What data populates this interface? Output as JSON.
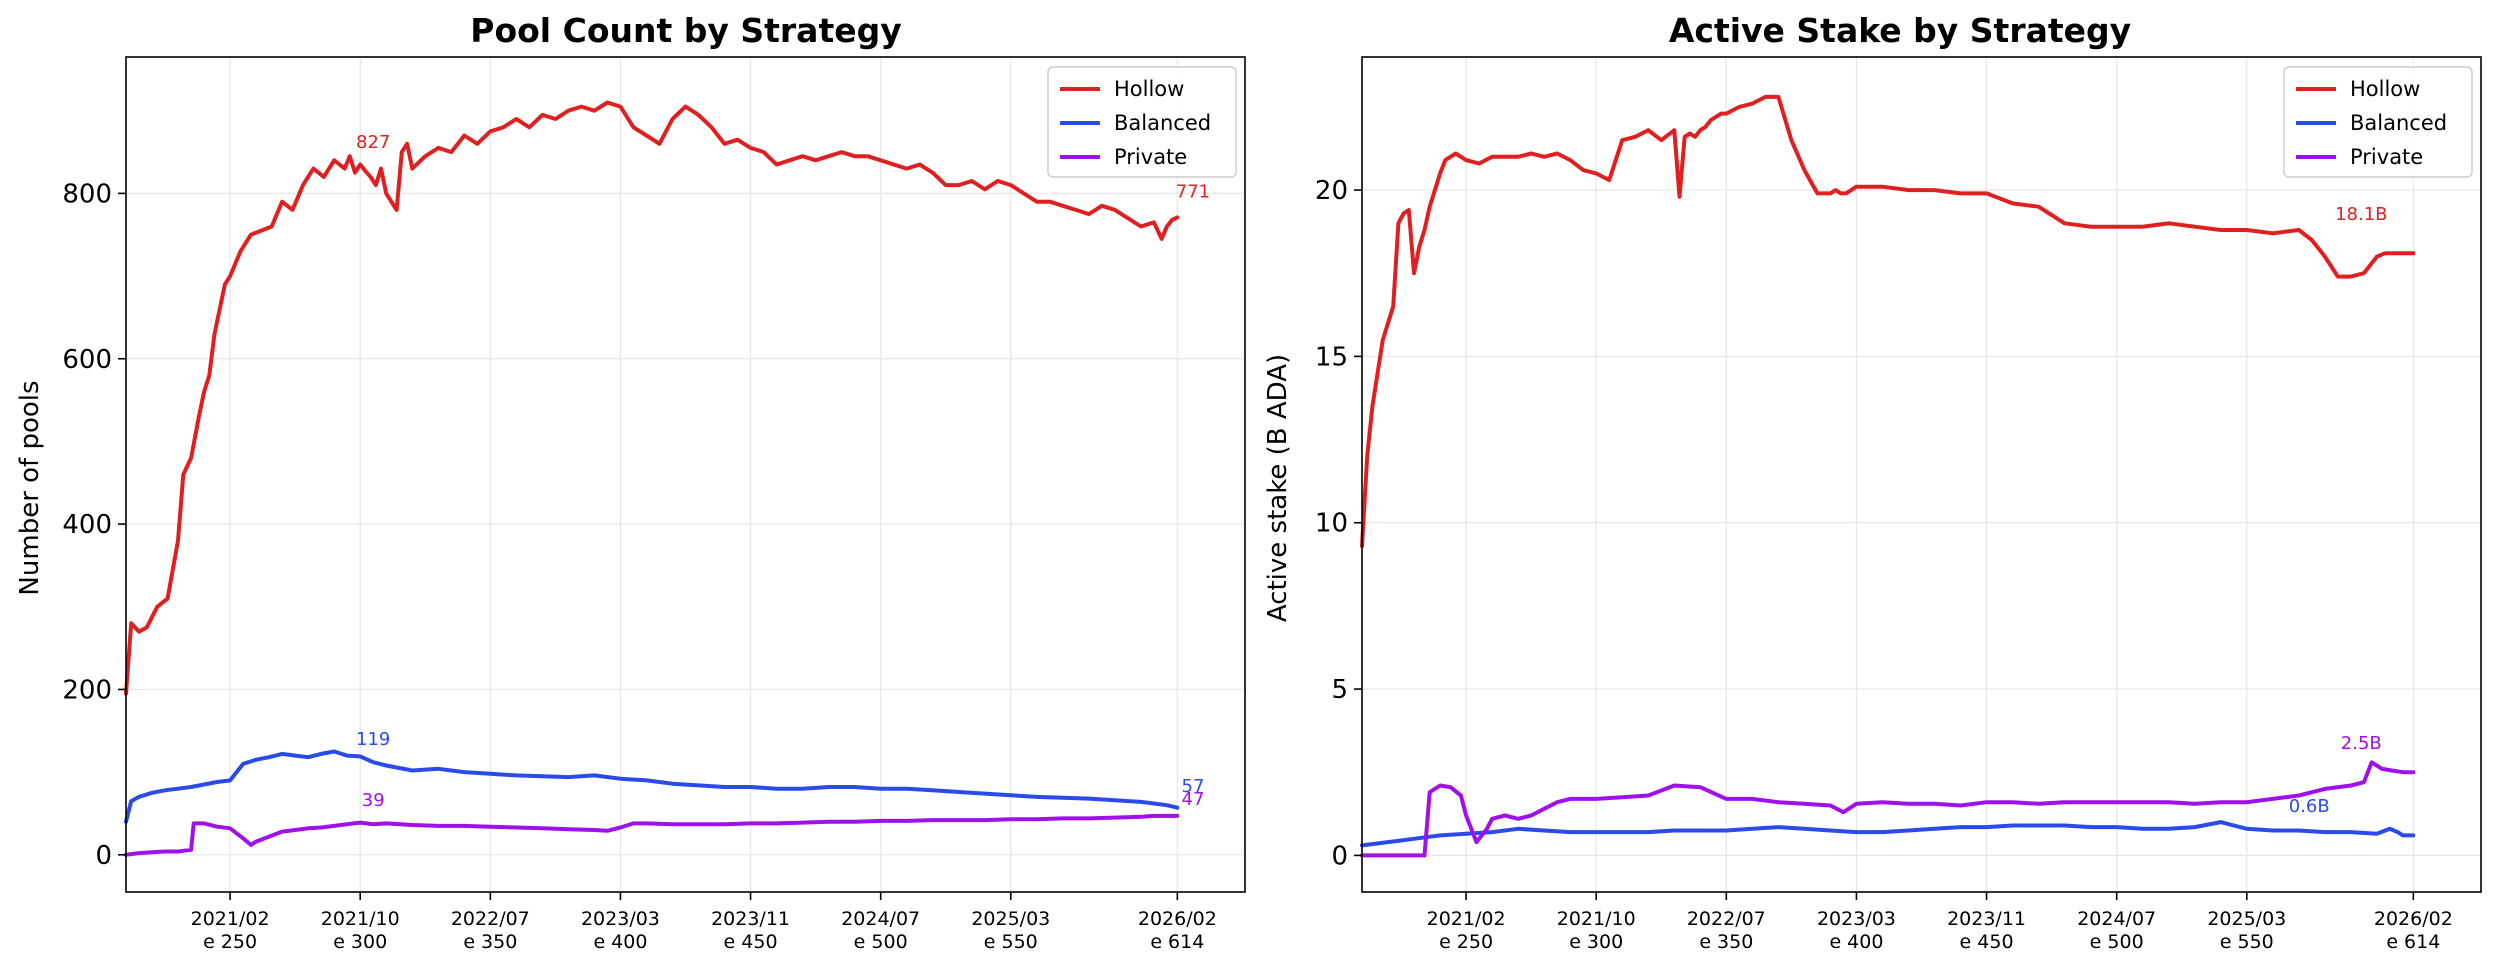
{
  "chart_data": [
    {
      "type": "line",
      "title": "Pool Count by Strategy",
      "xlabel": "",
      "ylabel": "Number of pools",
      "xlim": [
        210,
        640
      ],
      "ylim": [
        -45,
        965
      ],
      "yticks": [
        0,
        200,
        400,
        600,
        800
      ],
      "xticks": [
        {
          "epoch": 250,
          "date": "2021/02",
          "label": "e 250"
        },
        {
          "epoch": 300,
          "date": "2021/10",
          "label": "e 300"
        },
        {
          "epoch": 350,
          "date": "2022/07",
          "label": "e 350"
        },
        {
          "epoch": 400,
          "date": "2023/03",
          "label": "e 400"
        },
        {
          "epoch": 450,
          "date": "2023/11",
          "label": "e 450"
        },
        {
          "epoch": 500,
          "date": "2024/07",
          "label": "e 500"
        },
        {
          "epoch": 550,
          "date": "2025/03",
          "label": "e 550"
        },
        {
          "epoch": 614,
          "date": "2026/02",
          "label": "e 614"
        }
      ],
      "grid": true,
      "legend": "top-right",
      "series": [
        {
          "name": "Hollow",
          "color": "#e02020",
          "x": [
            210,
            212,
            215,
            218,
            222,
            226,
            230,
            232,
            235,
            238,
            240,
            242,
            244,
            246,
            248,
            250,
            254,
            258,
            262,
            266,
            270,
            274,
            278,
            282,
            286,
            290,
            294,
            296,
            298,
            300,
            302,
            304,
            306,
            308,
            310,
            312,
            314,
            316,
            318,
            320,
            325,
            330,
            335,
            340,
            345,
            350,
            355,
            360,
            365,
            370,
            375,
            380,
            385,
            390,
            395,
            400,
            405,
            410,
            415,
            420,
            425,
            430,
            435,
            440,
            445,
            450,
            455,
            460,
            465,
            470,
            475,
            480,
            485,
            490,
            495,
            500,
            505,
            510,
            515,
            520,
            525,
            530,
            535,
            540,
            545,
            550,
            555,
            560,
            565,
            570,
            575,
            580,
            585,
            590,
            595,
            600,
            605,
            608,
            610,
            612,
            614
          ],
          "values": [
            195,
            280,
            270,
            275,
            300,
            310,
            380,
            460,
            480,
            530,
            560,
            580,
            630,
            660,
            690,
            700,
            730,
            750,
            755,
            760,
            790,
            780,
            810,
            830,
            820,
            840,
            830,
            845,
            825,
            835,
            827,
            820,
            810,
            830,
            800,
            790,
            780,
            850,
            860,
            830,
            845,
            855,
            850,
            870,
            860,
            875,
            880,
            890,
            880,
            895,
            890,
            900,
            905,
            900,
            910,
            905,
            880,
            870,
            860,
            890,
            905,
            895,
            880,
            860,
            865,
            855,
            850,
            835,
            840,
            845,
            840,
            845,
            850,
            845,
            845,
            840,
            835,
            830,
            835,
            825,
            810,
            810,
            815,
            805,
            815,
            810,
            800,
            790,
            790,
            785,
            780,
            775,
            785,
            780,
            770,
            760,
            765,
            745,
            760,
            768,
            771
          ]
        },
        {
          "name": "Balanced",
          "color": "#2a4bea",
          "x": [
            210,
            212,
            215,
            220,
            225,
            230,
            235,
            240,
            245,
            250,
            255,
            260,
            265,
            270,
            275,
            280,
            285,
            290,
            295,
            300,
            305,
            310,
            315,
            320,
            330,
            340,
            350,
            360,
            370,
            380,
            390,
            400,
            410,
            420,
            430,
            440,
            450,
            460,
            470,
            480,
            490,
            500,
            510,
            520,
            530,
            540,
            550,
            560,
            570,
            580,
            590,
            600,
            605,
            610,
            614
          ],
          "values": [
            40,
            65,
            70,
            75,
            78,
            80,
            82,
            85,
            88,
            90,
            110,
            115,
            118,
            122,
            120,
            118,
            122,
            125,
            120,
            119,
            112,
            108,
            105,
            102,
            104,
            100,
            98,
            96,
            95,
            94,
            96,
            92,
            90,
            86,
            84,
            82,
            82,
            80,
            80,
            82,
            82,
            80,
            80,
            78,
            76,
            74,
            72,
            70,
            69,
            68,
            66,
            64,
            62,
            60,
            57
          ]
        },
        {
          "name": "Private",
          "color": "#a010e8",
          "x": [
            210,
            215,
            220,
            225,
            230,
            235,
            236,
            240,
            245,
            250,
            255,
            258,
            260,
            265,
            270,
            275,
            280,
            285,
            290,
            295,
            300,
            305,
            310,
            320,
            330,
            340,
            350,
            360,
            370,
            380,
            390,
            395,
            400,
            405,
            410,
            420,
            430,
            440,
            450,
            460,
            470,
            480,
            490,
            500,
            510,
            520,
            530,
            540,
            550,
            560,
            570,
            580,
            590,
            600,
            605,
            610,
            614
          ],
          "values": [
            0,
            2,
            3,
            4,
            4,
            6,
            38,
            38,
            34,
            32,
            20,
            12,
            16,
            22,
            28,
            30,
            32,
            33,
            35,
            37,
            39,
            37,
            38,
            36,
            35,
            35,
            34,
            33,
            32,
            31,
            30,
            29,
            33,
            38,
            38,
            37,
            37,
            37,
            38,
            38,
            39,
            40,
            40,
            41,
            41,
            42,
            42,
            42,
            43,
            43,
            44,
            44,
            45,
            46,
            47,
            47,
            47
          ]
        }
      ],
      "annotations": [
        {
          "series": "Hollow",
          "x": 305,
          "y": 855,
          "text": "827"
        },
        {
          "series": "Hollow",
          "x": 620,
          "y": 795,
          "text": "771"
        },
        {
          "series": "Balanced",
          "x": 305,
          "y": 133,
          "text": "119"
        },
        {
          "series": "Balanced",
          "x": 620,
          "y": 76,
          "text": "57"
        },
        {
          "series": "Private",
          "x": 305,
          "y": 59,
          "text": "39"
        },
        {
          "series": "Private",
          "x": 620,
          "y": 60,
          "text": "47"
        }
      ]
    },
    {
      "type": "line",
      "title": "Active Stake by Strategy",
      "xlabel": "",
      "ylabel": "Active stake (B ADA)",
      "xlim": [
        210,
        640
      ],
      "ylim": [
        -1.1,
        24.0
      ],
      "yticks": [
        0,
        5,
        10,
        15,
        20
      ],
      "xticks": [
        {
          "epoch": 250,
          "date": "2021/02",
          "label": "e 250"
        },
        {
          "epoch": 300,
          "date": "2021/10",
          "label": "e 300"
        },
        {
          "epoch": 350,
          "date": "2022/07",
          "label": "e 350"
        },
        {
          "epoch": 400,
          "date": "2023/03",
          "label": "e 400"
        },
        {
          "epoch": 450,
          "date": "2023/11",
          "label": "e 450"
        },
        {
          "epoch": 500,
          "date": "2024/07",
          "label": "e 500"
        },
        {
          "epoch": 550,
          "date": "2025/03",
          "label": "e 550"
        },
        {
          "epoch": 614,
          "date": "2026/02",
          "label": "e 614"
        }
      ],
      "grid": true,
      "legend": "top-right",
      "series": [
        {
          "name": "Hollow",
          "color": "#e02020",
          "x": [
            210,
            212,
            214,
            216,
            218,
            220,
            222,
            224,
            226,
            228,
            230,
            232,
            234,
            236,
            238,
            240,
            242,
            244,
            246,
            250,
            255,
            260,
            265,
            270,
            275,
            280,
            285,
            290,
            295,
            300,
            305,
            310,
            315,
            320,
            325,
            330,
            332,
            334,
            336,
            338,
            340,
            342,
            344,
            346,
            348,
            350,
            355,
            360,
            365,
            370,
            375,
            380,
            385,
            390,
            392,
            394,
            396,
            398,
            400,
            405,
            410,
            420,
            430,
            440,
            450,
            460,
            470,
            480,
            490,
            500,
            510,
            520,
            530,
            540,
            550,
            560,
            570,
            575,
            580,
            585,
            590,
            595,
            600,
            603,
            606,
            608,
            610,
            612,
            614
          ],
          "values": [
            9.3,
            12,
            13.5,
            14.5,
            15.5,
            16,
            16.5,
            19,
            19.3,
            19.4,
            17.5,
            18.3,
            18.8,
            19.5,
            20.0,
            20.5,
            20.9,
            21.0,
            21.1,
            20.9,
            20.8,
            21.0,
            21.0,
            21.0,
            21.1,
            21.0,
            21.1,
            20.9,
            20.6,
            20.5,
            20.3,
            21.5,
            21.6,
            21.8,
            21.5,
            21.8,
            19.8,
            21.6,
            21.7,
            21.6,
            21.8,
            21.9,
            22.1,
            22.2,
            22.3,
            22.3,
            22.5,
            22.6,
            22.8,
            22.8,
            21.5,
            20.6,
            19.9,
            19.9,
            20.0,
            19.9,
            19.9,
            20.0,
            20.1,
            20.1,
            20.1,
            20.0,
            20.0,
            19.9,
            19.9,
            19.6,
            19.5,
            19.0,
            18.9,
            18.9,
            18.9,
            19.0,
            18.9,
            18.8,
            18.8,
            18.7,
            18.8,
            18.5,
            18.0,
            17.4,
            17.4,
            17.5,
            18.0,
            18.1,
            18.1,
            18.1,
            18.1,
            18.1,
            18.1
          ]
        },
        {
          "name": "Balanced",
          "color": "#2a4bea",
          "x": [
            210,
            220,
            230,
            240,
            250,
            260,
            270,
            280,
            290,
            300,
            310,
            320,
            330,
            340,
            350,
            360,
            370,
            380,
            390,
            400,
            410,
            420,
            430,
            440,
            450,
            460,
            470,
            480,
            490,
            500,
            510,
            520,
            530,
            540,
            545,
            550,
            560,
            570,
            580,
            590,
            600,
            605,
            608,
            610,
            614
          ],
          "values": [
            0.3,
            0.4,
            0.5,
            0.6,
            0.65,
            0.7,
            0.8,
            0.75,
            0.7,
            0.7,
            0.7,
            0.7,
            0.75,
            0.75,
            0.75,
            0.8,
            0.85,
            0.8,
            0.75,
            0.7,
            0.7,
            0.75,
            0.8,
            0.85,
            0.85,
            0.9,
            0.9,
            0.9,
            0.85,
            0.85,
            0.8,
            0.8,
            0.85,
            1.0,
            0.9,
            0.8,
            0.75,
            0.75,
            0.7,
            0.7,
            0.65,
            0.8,
            0.7,
            0.6,
            0.6
          ]
        },
        {
          "name": "Private",
          "color": "#a010e8",
          "x": [
            210,
            220,
            230,
            234,
            236,
            240,
            244,
            248,
            250,
            252,
            254,
            258,
            260,
            265,
            270,
            275,
            280,
            285,
            290,
            300,
            310,
            320,
            330,
            340,
            350,
            360,
            370,
            380,
            390,
            395,
            400,
            410,
            420,
            430,
            440,
            450,
            460,
            470,
            480,
            490,
            500,
            510,
            520,
            530,
            540,
            550,
            560,
            570,
            580,
            590,
            595,
            598,
            602,
            606,
            610,
            614
          ],
          "values": [
            0,
            0,
            0,
            0,
            1.9,
            2.1,
            2.05,
            1.8,
            1.2,
            0.8,
            0.4,
            0.8,
            1.1,
            1.2,
            1.1,
            1.2,
            1.4,
            1.6,
            1.7,
            1.7,
            1.75,
            1.8,
            2.1,
            2.05,
            1.7,
            1.7,
            1.6,
            1.55,
            1.5,
            1.3,
            1.55,
            1.6,
            1.55,
            1.55,
            1.5,
            1.6,
            1.6,
            1.55,
            1.6,
            1.6,
            1.6,
            1.6,
            1.6,
            1.55,
            1.6,
            1.6,
            1.7,
            1.8,
            2.0,
            2.1,
            2.2,
            2.8,
            2.6,
            2.55,
            2.5,
            2.5
          ]
        }
      ],
      "annotations": [
        {
          "series": "Hollow",
          "x": 594,
          "y": 19.1,
          "text": "18.1B"
        },
        {
          "series": "Balanced",
          "x": 574,
          "y": 1.3,
          "text": "0.6B"
        },
        {
          "series": "Private",
          "x": 594,
          "y": 3.2,
          "text": "2.5B"
        }
      ]
    }
  ]
}
